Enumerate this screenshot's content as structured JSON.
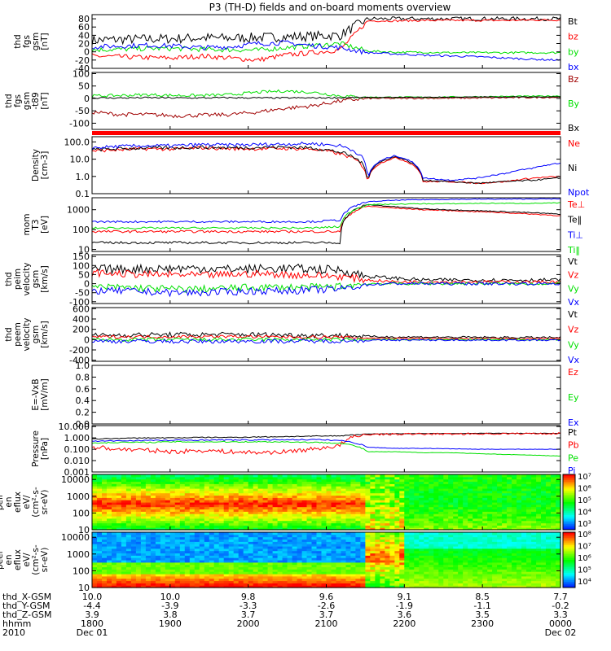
{
  "title": "P3 (TH-D) fields and on-board moments overview",
  "colors": {
    "black": "#000000",
    "red": "#ff0000",
    "green": "#00e000",
    "blue": "#0000ff",
    "darkred": "#a00000",
    "band": "#ff0000"
  },
  "chart_data": [
    {
      "id": "fgs",
      "type": "line",
      "ylabel": [
        "thd",
        "fgs",
        "gsm",
        "[nT]"
      ],
      "yticks": [
        80,
        60,
        40,
        20,
        0,
        -20,
        -40
      ],
      "ylim": [
        -40,
        90
      ],
      "series": [
        {
          "name": "Bt",
          "color": "#000000",
          "values": [
            28,
            30,
            31,
            32,
            34,
            33,
            35,
            36,
            38,
            40,
            80,
            80,
            80,
            80,
            80,
            80,
            80,
            80
          ],
          "noise": 12
        },
        {
          "name": "bz",
          "color": "#ff0000",
          "values": [
            -10,
            -12,
            -14,
            -15,
            -10,
            -15,
            -20,
            -8,
            -2,
            5,
            75,
            75,
            76,
            76,
            76,
            76,
            77,
            77
          ],
          "noise": 6
        },
        {
          "name": "by",
          "color": "#00e000",
          "values": [
            5,
            6,
            8,
            8,
            6,
            5,
            4,
            10,
            15,
            20,
            2,
            -1,
            -1,
            -2,
            -2,
            -2,
            -2,
            -2
          ],
          "noise": 6
        },
        {
          "name": "bx",
          "color": "#0000ff",
          "values": [
            12,
            14,
            16,
            14,
            10,
            12,
            20,
            22,
            15,
            10,
            -2,
            -5,
            -8,
            -10,
            -12,
            -15,
            -18,
            -20
          ],
          "noise": 6
        }
      ]
    },
    {
      "id": "fgs-t89",
      "type": "line",
      "ylabel": [
        "thd",
        "fgs",
        "gsm",
        "-t89",
        "[nT]"
      ],
      "yticks": [
        100,
        50,
        0,
        -50,
        -100
      ],
      "ylim": [
        -125,
        105
      ],
      "series": [
        {
          "name": "Bz",
          "color": "#a00000",
          "values": [
            -55,
            -65,
            -65,
            -70,
            -68,
            -65,
            -55,
            -40,
            -30,
            -10,
            0,
            0,
            1,
            1,
            2,
            3,
            4,
            5
          ],
          "noise": 8
        },
        {
          "name": "By",
          "color": "#00e000",
          "values": [
            10,
            12,
            15,
            12,
            12,
            15,
            25,
            30,
            25,
            10,
            5,
            5,
            5,
            6,
            7,
            8,
            9,
            10
          ],
          "noise": 6
        },
        {
          "name": "Bx",
          "color": "#000000",
          "values": [
            2,
            2,
            3,
            2,
            2,
            3,
            2,
            2,
            2,
            3,
            4,
            4,
            5,
            5,
            6,
            6,
            6,
            7
          ],
          "noise": 3
        }
      ]
    },
    {
      "id": "density",
      "type": "line",
      "ylabel": [
        "Density",
        "[cm-3]"
      ],
      "yscale": "log",
      "yticks": [
        100.0,
        10.0,
        1.0,
        0.1
      ],
      "ytick_labels": [
        "100.0",
        "10.0",
        "1.0",
        "0.1"
      ],
      "ylim": [
        0.1,
        200
      ],
      "series": [
        {
          "name": "Ne",
          "color": "#ff0000",
          "values": [
            30,
            35,
            40,
            38,
            45,
            40,
            40,
            42,
            38,
            20,
            0.3,
            12,
            0.5,
            0.5,
            0.4,
            0.5,
            0.8,
            1.0
          ],
          "noise": 0.1
        },
        {
          "name": "Ni",
          "color": "#000000",
          "values": [
            35,
            40,
            45,
            45,
            50,
            45,
            48,
            50,
            45,
            25,
            0.4,
            14,
            0.6,
            0.5,
            0.4,
            0.5,
            0.6,
            0.8
          ],
          "noise": 0.1
        },
        {
          "name": "Npot",
          "color": "#0000ff",
          "values": [
            45,
            55,
            60,
            60,
            70,
            65,
            70,
            75,
            80,
            60,
            0.5,
            16,
            0.8,
            0.6,
            0.8,
            1.5,
            3,
            6
          ],
          "noise": 0.1
        }
      ]
    },
    {
      "id": "mom-temp",
      "type": "line",
      "ylabel": [
        "mom",
        "T3",
        "[eV]"
      ],
      "yscale": "log",
      "yticks": [
        1000,
        100,
        10
      ],
      "ytick_labels": [
        "1000",
        "100",
        "10"
      ],
      "ylim": [
        8,
        4000
      ],
      "series": [
        {
          "name": "Te⊥",
          "color": "#ff0000",
          "values": [
            80,
            80,
            80,
            80,
            80,
            80,
            80,
            80,
            80,
            80,
            1500,
            1200,
            1000,
            900,
            800,
            700,
            600,
            500
          ],
          "noise": 0.06
        },
        {
          "name": "Te‖",
          "color": "#000000",
          "values": [
            22,
            22,
            22,
            22,
            22,
            22,
            22,
            22,
            22,
            22,
            1800,
            1400,
            1100,
            1000,
            900,
            800,
            700,
            600
          ],
          "noise": 0.06
        },
        {
          "name": "Ti⊥",
          "color": "#0000ff",
          "values": [
            250,
            250,
            250,
            250,
            250,
            250,
            250,
            250,
            250,
            300,
            2500,
            3000,
            3200,
            3300,
            3400,
            3400,
            3500,
            3500
          ],
          "noise": 0.05
        },
        {
          "name": "Ti‖",
          "color": "#00e000",
          "values": [
            120,
            120,
            120,
            120,
            120,
            120,
            120,
            120,
            120,
            140,
            1800,
            1900,
            2000,
            2000,
            2100,
            2100,
            2100,
            2200
          ],
          "noise": 0.05
        }
      ]
    },
    {
      "id": "peim-velocity",
      "type": "line",
      "ylabel": [
        "thd",
        "peim",
        "velocity",
        "gsm",
        "[km/s]"
      ],
      "yticks": [
        150,
        100,
        50,
        0,
        -50,
        -100
      ],
      "ylim": [
        -110,
        160
      ],
      "series": [
        {
          "name": "Vt",
          "color": "#000000",
          "values": [
            80,
            80,
            82,
            85,
            85,
            80,
            82,
            85,
            80,
            75,
            40,
            30,
            20,
            20,
            20,
            20,
            20,
            20
          ],
          "noise": 25
        },
        {
          "name": "Vz",
          "color": "#ff0000",
          "values": [
            60,
            55,
            50,
            50,
            45,
            50,
            55,
            50,
            45,
            40,
            20,
            10,
            10,
            10,
            10,
            10,
            10,
            10
          ],
          "noise": 20
        },
        {
          "name": "Vy",
          "color": "#00e000",
          "values": [
            -20,
            -20,
            -25,
            -30,
            -30,
            -25,
            -20,
            -20,
            -20,
            -15,
            0,
            0,
            0,
            0,
            0,
            0,
            0,
            0
          ],
          "noise": 20
        },
        {
          "name": "Vx",
          "color": "#0000ff",
          "values": [
            -40,
            -40,
            -45,
            -50,
            -50,
            -45,
            -40,
            -40,
            -35,
            -30,
            -5,
            0,
            0,
            0,
            0,
            0,
            0,
            0
          ],
          "noise": 20
        }
      ]
    },
    {
      "id": "peem-velocity",
      "type": "line",
      "ylabel": [
        "thd",
        "peem",
        "velocity",
        "gsm",
        "[km/s]"
      ],
      "yticks": [
        600,
        400,
        200,
        0,
        -200,
        -400
      ],
      "ylim": [
        -420,
        620
      ],
      "series": [
        {
          "name": "Vt",
          "color": "#000000",
          "values": [
            80,
            90,
            90,
            95,
            95,
            100,
            95,
            90,
            85,
            80,
            60,
            50,
            50,
            45,
            45,
            40,
            40,
            40
          ],
          "noise": 50
        },
        {
          "name": "Vz",
          "color": "#ff0000",
          "values": [
            50,
            55,
            55,
            55,
            60,
            60,
            55,
            50,
            50,
            45,
            30,
            25,
            25,
            20,
            20,
            20,
            20,
            20
          ],
          "noise": 30
        },
        {
          "name": "Vy",
          "color": "#00e000",
          "values": [
            0,
            0,
            0,
            0,
            0,
            0,
            0,
            0,
            0,
            0,
            0,
            0,
            0,
            0,
            0,
            0,
            0,
            0
          ],
          "noise": 35
        },
        {
          "name": "Vx",
          "color": "#0000ff",
          "values": [
            -30,
            -30,
            -30,
            -35,
            -35,
            -30,
            -30,
            -30,
            -30,
            -25,
            -15,
            -10,
            -10,
            -10,
            -10,
            -10,
            -10,
            -10
          ],
          "noise": 40
        }
      ]
    },
    {
      "id": "efield",
      "type": "line",
      "ylabel": [
        "E=-VxB",
        "[mV/m]"
      ],
      "yticks": [
        1.0,
        0.8,
        0.6,
        0.4,
        0.2,
        0.0
      ],
      "ytick_labels": [
        "1.0",
        "0.8",
        "0.6",
        "0.4",
        "0.2",
        "0.0"
      ],
      "ylim": [
        0,
        1.0
      ],
      "series": [
        {
          "name": "Ez",
          "color": "#ff0000",
          "values": []
        },
        {
          "name": "Ey",
          "color": "#00e000",
          "values": []
        },
        {
          "name": "Ex",
          "color": "#0000ff",
          "values": []
        }
      ]
    },
    {
      "id": "pressure",
      "type": "line",
      "ylabel": [
        "Pressure",
        "[nPa]"
      ],
      "yscale": "log",
      "yticks": [
        10.0,
        1.0,
        0.1,
        0.01,
        0.001
      ],
      "ytick_labels": [
        "10.000",
        "1.000",
        "0.100",
        "0.010",
        "0.001"
      ],
      "ylim": [
        0.001,
        12
      ],
      "series": [
        {
          "name": "Pt",
          "color": "#000000",
          "values": [
            0.8,
            0.9,
            1.0,
            1.0,
            1.1,
            1.1,
            1.2,
            1.3,
            1.4,
            1.5,
            2.2,
            2.3,
            2.4,
            2.4,
            2.5,
            2.5,
            2.5,
            2.5
          ],
          "noise": 0.04
        },
        {
          "name": "Pb",
          "color": "#ff0000",
          "values": [
            0.15,
            0.1,
            0.08,
            0.06,
            0.08,
            0.06,
            0.05,
            0.06,
            0.1,
            0.2,
            2.0,
            2.1,
            2.2,
            2.2,
            2.3,
            2.3,
            2.4,
            2.4
          ],
          "noise": 0.2
        },
        {
          "name": "Pe",
          "color": "#00e000",
          "values": [
            0.35,
            0.4,
            0.4,
            0.45,
            0.45,
            0.45,
            0.45,
            0.45,
            0.4,
            0.35,
            0.06,
            0.06,
            0.05,
            0.05,
            0.04,
            0.035,
            0.03,
            0.025
          ],
          "noise": 0.05
        },
        {
          "name": "Pi",
          "color": "#0000ff",
          "values": [
            0.5,
            0.55,
            0.6,
            0.6,
            0.65,
            0.65,
            0.65,
            0.7,
            0.7,
            0.6,
            0.15,
            0.12,
            0.12,
            0.11,
            0.1,
            0.1,
            0.1,
            0.1
          ],
          "noise": 0.05
        }
      ]
    },
    {
      "id": "peir-spec",
      "type": "heatmap",
      "ylabel": [
        "thd",
        "peir",
        "en",
        "eflux",
        "eV/",
        "(cm²-s-",
        "sr-eV)"
      ],
      "yscale": "log",
      "yticks": [
        10000,
        1000,
        100,
        10
      ],
      "ytick_labels": [
        "10000",
        "1000",
        "100",
        "10"
      ],
      "ylim": [
        10,
        20000
      ],
      "colorbar": {
        "min_exp": 3,
        "max_exp": 7,
        "labels": [
          "10⁷",
          "10⁶",
          "10⁵",
          "10⁴",
          "10³"
        ]
      }
    },
    {
      "id": "peer-spec",
      "type": "heatmap",
      "ylabel": [
        "thd",
        "peer",
        "en",
        "eflux",
        "eV/",
        "(cm²-s-",
        "sr-eV)"
      ],
      "yscale": "log",
      "yticks": [
        10000,
        1000,
        100,
        10
      ],
      "ytick_labels": [
        "10000",
        "1000",
        "100",
        "10"
      ],
      "ylim": [
        10,
        20000
      ],
      "colorbar": {
        "min_exp": 4,
        "max_exp": 8,
        "labels": [
          "10⁸",
          "10⁷",
          "10⁶",
          "10⁵",
          "10⁴"
        ]
      }
    }
  ],
  "x_axis": {
    "row_labels": [
      "thd_X-GSM",
      "thd_Y-GSM",
      "thd_Z-GSM",
      "hhmm",
      "2010"
    ],
    "ticks": [
      {
        "x": "10.0",
        "y": "-4.4",
        "z": "3.9",
        "t": "1800",
        "d": "Dec 01"
      },
      {
        "x": "10.0",
        "y": "-3.9",
        "z": "3.8",
        "t": "1900",
        "d": ""
      },
      {
        "x": "9.8",
        "y": "-3.3",
        "z": "3.7",
        "t": "2000",
        "d": ""
      },
      {
        "x": "9.6",
        "y": "-2.6",
        "z": "3.7",
        "t": "2100",
        "d": ""
      },
      {
        "x": "9.1",
        "y": "-1.9",
        "z": "3.6",
        "t": "2200",
        "d": ""
      },
      {
        "x": "8.5",
        "y": "-1.1",
        "z": "3.5",
        "t": "2300",
        "d": ""
      },
      {
        "x": "7.7",
        "y": "-0.2",
        "z": "3.3",
        "t": "0000",
        "d": "Dec 02"
      }
    ]
  }
}
